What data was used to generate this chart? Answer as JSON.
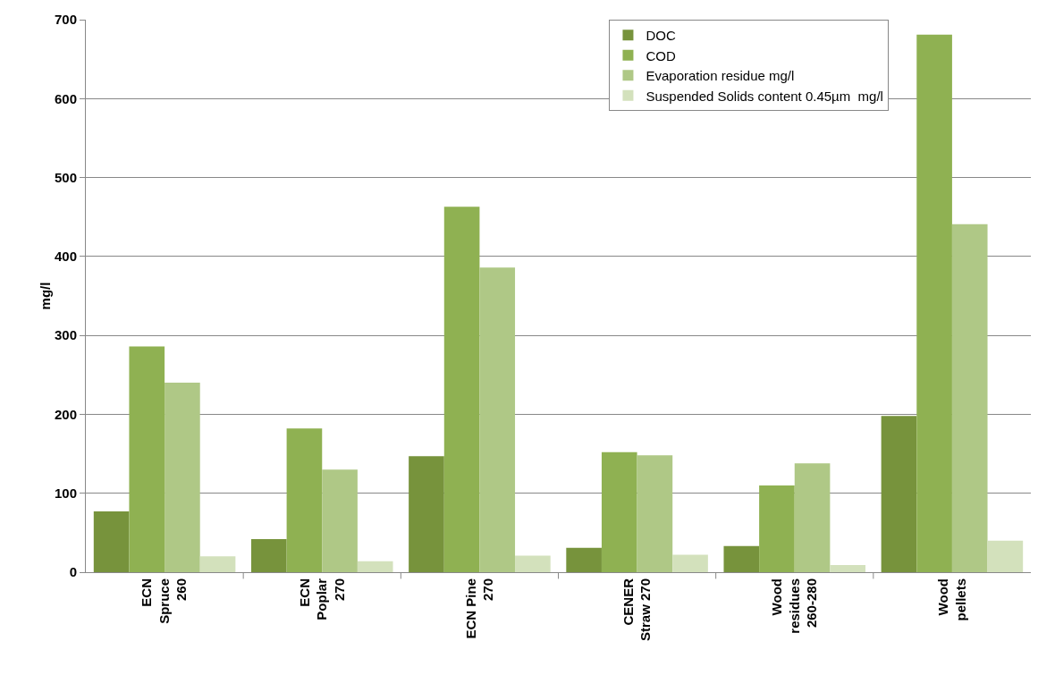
{
  "chart_data": {
    "type": "bar",
    "ylabel": "mg/l",
    "categories": [
      "ECN Spruce 260",
      "ECN Poplar 270",
      "ECN Pine 270",
      "CENER Straw 270",
      "Wood residues 260-280",
      "Wood pellets"
    ],
    "series": [
      {
        "name": "DOC",
        "color": "#77933c",
        "values": [
          77,
          42,
          147,
          31,
          33,
          198
        ]
      },
      {
        "name": "COD",
        "color": "#8fb152",
        "values": [
          286,
          182,
          463,
          152,
          110,
          681
        ]
      },
      {
        "name": "Evaporation residue mg/l",
        "color": "#afc886",
        "values": [
          240,
          130,
          386,
          148,
          138,
          441
        ]
      },
      {
        "name": "Suspended Solids content 0.45µm  mg/l",
        "color": "#d3e1bc",
        "values": [
          20,
          14,
          21,
          22,
          9,
          40
        ]
      }
    ],
    "ylim": [
      0,
      700
    ],
    "yticks": [
      0,
      100,
      200,
      300,
      400,
      500,
      600,
      700
    ],
    "grid": "y",
    "legend": "top right"
  }
}
